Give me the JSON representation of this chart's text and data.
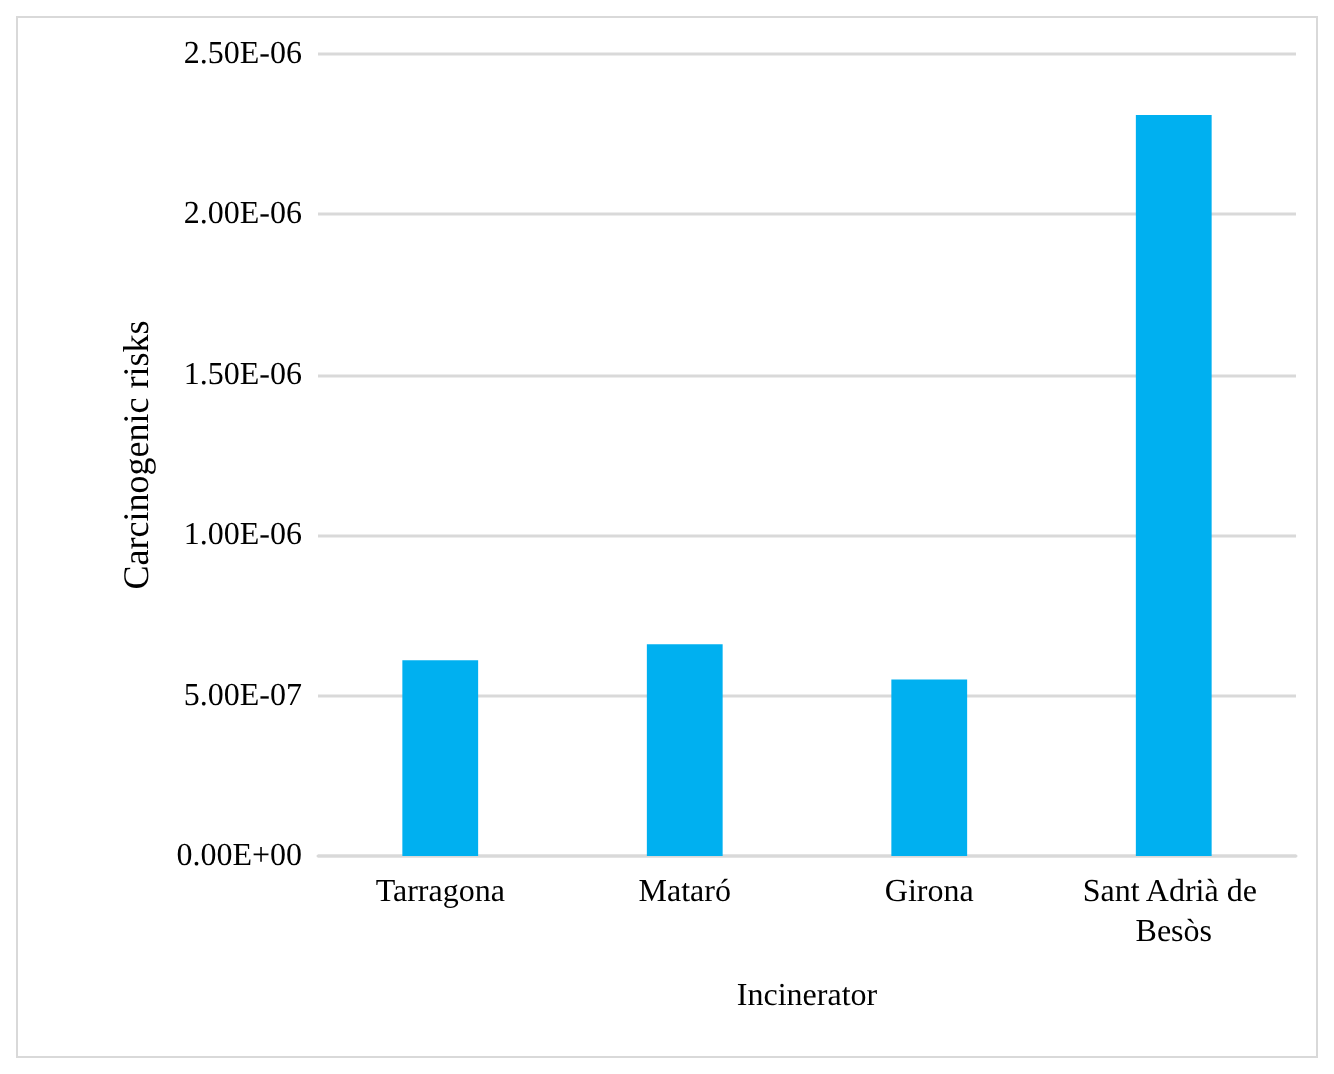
{
  "chart_data": {
    "type": "bar",
    "xlabel": "Incinerator",
    "ylabel": "Carcinogenic risks",
    "categories": [
      "Tarragona",
      "Mataró",
      "Girona",
      "Sant Adrià de Besòs"
    ],
    "values": [
      6.1e-07,
      6.6e-07,
      5.5e-07,
      2.31e-06
    ],
    "color": "#00b0f0",
    "ylim": [
      0,
      2.5e-06
    ],
    "yticks": [
      {
        "value": 0,
        "label": "0.00E+00"
      },
      {
        "value": 5e-07,
        "label": "5.00E-07"
      },
      {
        "value": 1e-06,
        "label": "1.00E-06"
      },
      {
        "value": 1.5e-06,
        "label": "1.50E-06"
      },
      {
        "value": 2e-06,
        "label": "2.00E-06"
      },
      {
        "value": 2.5e-06,
        "label": "2.50E-06"
      }
    ],
    "grid": "y"
  }
}
